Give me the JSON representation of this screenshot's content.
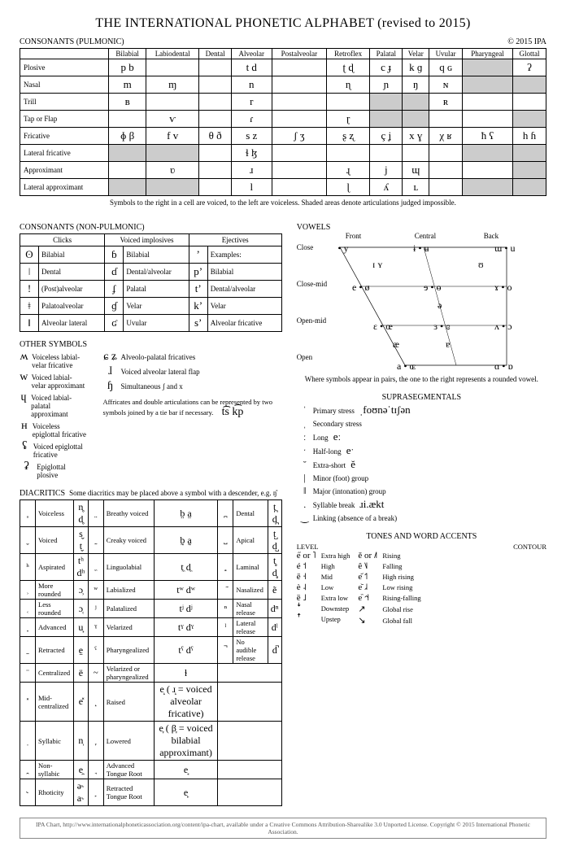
{
  "title": "THE INTERNATIONAL PHONETIC ALPHABET (revised to 2015)",
  "copyright": "© 2015 IPA",
  "pulmonic": {
    "label": "CONSONANTS (PULMONIC)",
    "columns": [
      "Bilabial",
      "Labiodental",
      "Dental",
      "Alveolar",
      "Postalveolar",
      "Retroflex",
      "Palatal",
      "Velar",
      "Uvular",
      "Pharyngeal",
      "Glottal"
    ],
    "rows": [
      {
        "label": "Plosive",
        "cells": [
          "p  b",
          "",
          "",
          "t  d",
          "",
          "ʈ  ɖ",
          "c  ɟ",
          "k  ɡ",
          "q  ɢ",
          "",
          "ʔ"
        ],
        "shade": [
          9
        ],
        "gray": [
          10
        ]
      },
      {
        "label": "Nasal",
        "cells": [
          "m",
          "ɱ",
          "",
          "n",
          "",
          "ɳ",
          "ɲ",
          "ŋ",
          "ɴ",
          "",
          ""
        ],
        "shade": [
          9,
          10
        ]
      },
      {
        "label": "Trill",
        "cells": [
          "ʙ",
          "",
          "",
          "r",
          "",
          "",
          "",
          "",
          "ʀ",
          "",
          ""
        ],
        "shade": [
          6,
          7
        ]
      },
      {
        "label": "Tap or Flap",
        "cells": [
          "",
          "ⱱ",
          "",
          "ɾ",
          "",
          "ɽ",
          "",
          "",
          "",
          "",
          ""
        ],
        "shade": [
          6,
          7,
          10
        ]
      },
      {
        "label": "Fricative",
        "cells": [
          "ɸ  β",
          "f  v",
          "θ  ð",
          "s  z",
          "ʃ  ʒ",
          "ʂ  ʐ",
          "ç  ʝ",
          "x  ɣ",
          "χ  ʁ",
          "ħ  ʕ",
          "h  ɦ"
        ]
      },
      {
        "label": "Lateral fricative",
        "cells": [
          "",
          "",
          "",
          "ɬ  ɮ",
          "",
          "",
          "",
          "",
          "",
          "",
          ""
        ],
        "shade": [
          0,
          1,
          9,
          10
        ]
      },
      {
        "label": "Approximant",
        "cells": [
          "",
          "ʋ",
          "",
          "ɹ",
          "",
          "ɻ",
          "j",
          "ɰ",
          "",
          "",
          ""
        ],
        "shade": [
          10
        ]
      },
      {
        "label": "Lateral approximant",
        "cells": [
          "",
          "",
          "",
          "l",
          "",
          "ɭ",
          "ʎ",
          "ʟ",
          "",
          "",
          ""
        ],
        "shade": [
          0,
          1,
          9,
          10
        ]
      }
    ],
    "caption": "Symbols to the right in a cell are voiced, to the left are voiceless. Shaded areas denote articulations judged impossible."
  },
  "nonpulmonic": {
    "label": "CONSONANTS (NON-PULMONIC)",
    "headers": [
      "Clicks",
      "Voiced implosives",
      "Ejectives"
    ],
    "rows": [
      [
        "ʘ",
        "Bilabial",
        "ɓ",
        "Bilabial",
        "ʼ",
        "Examples:"
      ],
      [
        "ǀ",
        "Dental",
        "ɗ",
        "Dental/alveolar",
        "pʼ",
        "Bilabial"
      ],
      [
        "ǃ",
        "(Post)alveolar",
        "ʄ",
        "Palatal",
        "tʼ",
        "Dental/alveolar"
      ],
      [
        "ǂ",
        "Palatoalveolar",
        "ɠ",
        "Velar",
        "kʼ",
        "Velar"
      ],
      [
        "ǁ",
        "Alveolar lateral",
        "ʛ",
        "Uvular",
        "sʼ",
        "Alveolar fricative"
      ]
    ]
  },
  "other": {
    "label": "OTHER SYMBOLS",
    "left": [
      {
        "sym": "ʍ",
        "desc": "Voiceless labial-velar fricative"
      },
      {
        "sym": "w",
        "desc": "Voiced labial-velar approximant"
      },
      {
        "sym": "ɥ",
        "desc": "Voiced labial-palatal approximant"
      },
      {
        "sym": "ʜ",
        "desc": "Voiceless epiglottal fricative"
      },
      {
        "sym": "ʢ",
        "desc": "Voiced epiglottal fricative"
      },
      {
        "sym": "ʡ",
        "desc": "Epiglottal plosive"
      }
    ],
    "right": [
      {
        "sym": "ɕ ʑ",
        "desc": "Alveolo-palatal fricatives"
      },
      {
        "sym": "ɺ",
        "desc": "Voiced alveolar lateral flap"
      },
      {
        "sym": "ɧ",
        "desc": "Simultaneous  ʃ  and  x"
      }
    ],
    "note": "Affricates and double articulations can be represented by two symbols joined by a tie bar if necessary.",
    "note_ex": "t͡s   k͡p"
  },
  "vowels": {
    "label": "VOWELS",
    "front": "Front",
    "central": "Central",
    "back": "Back",
    "close": "Close",
    "closemid": "Close-mid",
    "openmid": "Open-mid",
    "open": "Open",
    "caption": "Where symbols appear in pairs, the one to the right represents a rounded vowel."
  },
  "supra": {
    "label": "SUPRASEGMENTALS",
    "items": [
      {
        "sym": "ˈ",
        "desc": "Primary stress",
        "ex": "ˌfoʊnəˈtɪʃən"
      },
      {
        "sym": "ˌ",
        "desc": "Secondary stress"
      },
      {
        "sym": "ː",
        "desc": "Long",
        "ex": "eː"
      },
      {
        "sym": "ˑ",
        "desc": "Half-long",
        "ex": "eˑ"
      },
      {
        "sym": "˘",
        "desc": "Extra-short",
        "ex": "ĕ"
      },
      {
        "sym": "|",
        "desc": "Minor (foot) group"
      },
      {
        "sym": "‖",
        "desc": "Major (intonation) group"
      },
      {
        "sym": ".",
        "desc": "Syllable break",
        "ex": "ɹi.ækt"
      },
      {
        "sym": "‿",
        "desc": "Linking (absence of a break)"
      }
    ]
  },
  "diacritics": {
    "label": "DIACRITICS",
    "sub": "Some diacritics may be placed above a symbol with a descender, e.g. ŋ̊",
    "rows": [
      [
        "̥",
        "Voiceless",
        "n̥  d̥",
        "̤",
        "Breathy voiced",
        "b̤  a̤",
        "̪",
        "Dental",
        "t̪  d̪"
      ],
      [
        "̬",
        "Voiced",
        "s̬  t̬",
        "̰",
        "Creaky voiced",
        "b̰  a̰",
        "̺",
        "Apical",
        "t̺  d̺"
      ],
      [
        "ʰ",
        "Aspirated",
        "tʰ dʰ",
        "̼",
        "Linguolabial",
        "t̼  d̼",
        "̻",
        "Laminal",
        "t̻  d̻"
      ],
      [
        "̹",
        "More rounded",
        "ɔ̹",
        "ʷ",
        "Labialized",
        "tʷ dʷ",
        "̃",
        "Nasalized",
        "ẽ"
      ],
      [
        "̜",
        "Less rounded",
        "ɔ̜",
        "ʲ",
        "Palatalized",
        "tʲ dʲ",
        "ⁿ",
        "Nasal release",
        "dⁿ"
      ],
      [
        "̟",
        "Advanced",
        "u̟",
        "ˠ",
        "Velarized",
        "tˠ dˠ",
        "ˡ",
        "Lateral release",
        "dˡ"
      ],
      [
        "̠",
        "Retracted",
        "e̠",
        "ˤ",
        "Pharyngealized",
        "tˤ dˤ",
        "̚",
        "No audible release",
        "d̚"
      ],
      [
        "̈",
        "Centralized",
        "ë",
        "~",
        "Velarized or pharyngealized",
        "ɫ",
        "",
        "",
        ""
      ],
      [
        "̽",
        "Mid-centralized",
        "e̽",
        "̝",
        "Raised",
        "e̝  ( ɹ̝ = voiced alveolar fricative)",
        "",
        "",
        ""
      ],
      [
        "̩",
        "Syllabic",
        "n̩",
        "̞",
        "Lowered",
        "e̞  ( β̞ = voiced bilabial approximant)",
        "",
        "",
        ""
      ],
      [
        "̯",
        "Non-syllabic",
        "e̯",
        "̘",
        "Advanced Tongue Root",
        "e̘",
        "",
        "",
        ""
      ],
      [
        "˞",
        "Rhoticity",
        "ə˞ a˞",
        "̙",
        "Retracted Tongue Root",
        "e̙",
        "",
        "",
        ""
      ]
    ]
  },
  "tones": {
    "label": "TONES AND WORD ACCENTS",
    "level_hdr": "LEVEL",
    "contour_hdr": "CONTOUR",
    "level": [
      {
        "sym": "e̋ or ˥",
        "desc": "Extra high"
      },
      {
        "sym": "é    ˦",
        "desc": "High"
      },
      {
        "sym": "ē    ˧",
        "desc": "Mid"
      },
      {
        "sym": "è    ˨",
        "desc": "Low"
      },
      {
        "sym": "ȅ    ˩",
        "desc": "Extra low"
      },
      {
        "sym": "ꜜ",
        "desc": "Downstep"
      },
      {
        "sym": "ꜛ",
        "desc": "Upstep"
      }
    ],
    "contour": [
      {
        "sym": "ě or ˩˥",
        "desc": "Rising"
      },
      {
        "sym": "ê    ˥˩",
        "desc": "Falling"
      },
      {
        "sym": "e᷄   ˦˥",
        "desc": "High rising"
      },
      {
        "sym": "e᷅   ˩˨",
        "desc": "Low rising"
      },
      {
        "sym": "e᷈  ˧˦˧",
        "desc": "Rising-falling"
      },
      {
        "sym": "↗",
        "desc": "Global rise"
      },
      {
        "sym": "↘",
        "desc": "Global fall"
      }
    ]
  },
  "footer": "IPA Chart, http://www.internationalphoneticassociation.org/content/ipa-chart, available under a Creative Commons Attribution-Sharealike 3.0 Unported License. Copyright © 2015 International Phonetic Association."
}
